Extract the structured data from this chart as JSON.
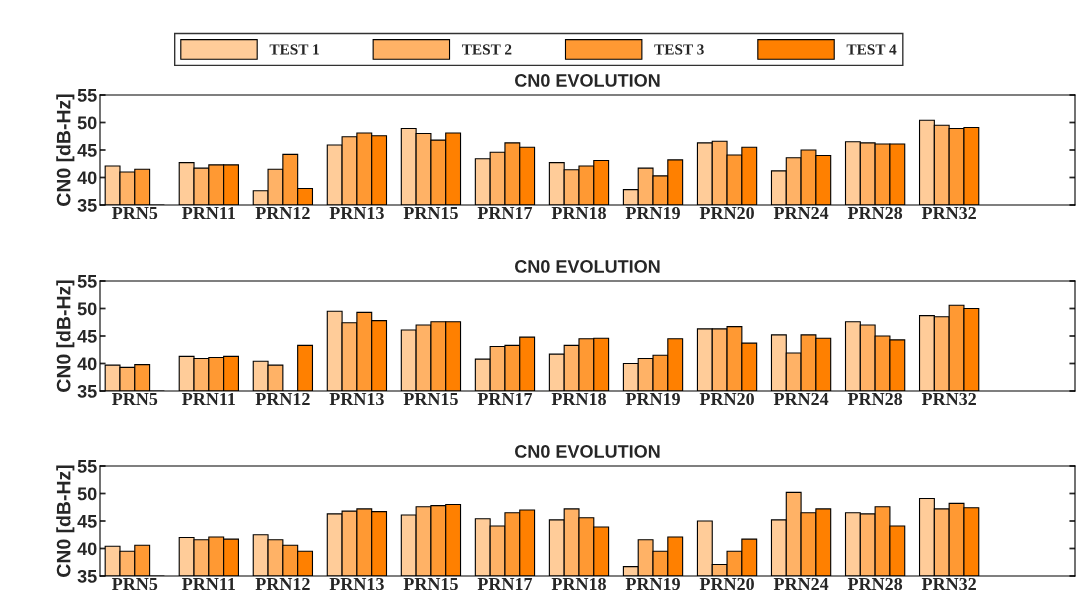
{
  "chart_data": [
    {
      "type": "bar",
      "title": "CN0 EVOLUTION",
      "ylabel": "CN0 [dB-Hz]",
      "legend": "top",
      "grid": false,
      "categories": [
        "PRN5",
        "PRN11",
        "PRN12",
        "PRN13",
        "PRN15",
        "PRN17",
        "PRN18",
        "PRN19",
        "PRN20",
        "PRN24",
        "PRN28",
        "PRN32"
      ],
      "ylim": [
        35,
        55
      ],
      "yticks": [
        35,
        40,
        45,
        50,
        55
      ],
      "series": [
        {
          "name": "TEST 1",
          "color": "#ffcc99",
          "values": [
            42.1,
            42.7,
            37.6,
            45.9,
            48.9,
            43.4,
            42.7,
            37.8,
            46.3,
            41.2,
            46.5,
            50.4
          ]
        },
        {
          "name": "TEST 2",
          "color": "#ffb266",
          "values": [
            41.0,
            41.7,
            41.5,
            47.4,
            48.0,
            44.6,
            41.4,
            41.7,
            46.6,
            43.6,
            46.3,
            49.5
          ]
        },
        {
          "name": "TEST 3",
          "color": "#ff9933",
          "values": [
            41.5,
            42.3,
            44.2,
            48.1,
            46.8,
            46.3,
            42.1,
            40.3,
            44.1,
            45.0,
            46.1,
            48.9
          ]
        },
        {
          "name": "TEST 4",
          "color": "#ff8000",
          "values": [
            35,
            42.3,
            38.0,
            47.6,
            48.1,
            45.5,
            43.1,
            43.2,
            45.5,
            44.0,
            46.1,
            49.1
          ]
        }
      ]
    },
    {
      "type": "bar",
      "title": "CN0 EVOLUTION",
      "ylabel": "CN0 [dB-Hz]",
      "grid": false,
      "categories": [
        "PRN5",
        "PRN11",
        "PRN12",
        "PRN13",
        "PRN15",
        "PRN17",
        "PRN18",
        "PRN19",
        "PRN20",
        "PRN24",
        "PRN28",
        "PRN32"
      ],
      "ylim": [
        35,
        55
      ],
      "yticks": [
        35,
        40,
        45,
        50,
        55
      ],
      "series": [
        {
          "color": "#ffcc99",
          "values": [
            39.7,
            41.3,
            40.4,
            49.5,
            46.1,
            40.8,
            41.7,
            40.0,
            46.3,
            45.2,
            47.6,
            48.7
          ]
        },
        {
          "color": "#ffb266",
          "values": [
            39.3,
            40.9,
            39.7,
            47.4,
            47.0,
            43.1,
            43.3,
            40.9,
            46.3,
            41.9,
            47.0,
            48.5
          ]
        },
        {
          "color": "#ff9933",
          "values": [
            39.8,
            41.1,
            35,
            49.3,
            47.6,
            43.3,
            44.5,
            41.5,
            46.7,
            45.2,
            45.0,
            50.6
          ]
        },
        {
          "color": "#ff8000",
          "values": [
            35,
            41.3,
            43.3,
            47.8,
            47.6,
            44.8,
            44.6,
            44.5,
            43.7,
            44.6,
            44.3,
            50.0
          ]
        }
      ]
    },
    {
      "type": "bar",
      "title": "CN0 EVOLUTION",
      "ylabel": "CN0 [dB-Hz]",
      "grid": false,
      "categories": [
        "PRN5",
        "PRN11",
        "PRN12",
        "PRN13",
        "PRN15",
        "PRN17",
        "PRN18",
        "PRN19",
        "PRN20",
        "PRN24",
        "PRN28",
        "PRN32"
      ],
      "ylim": [
        35,
        55
      ],
      "yticks": [
        35,
        40,
        45,
        50,
        55
      ],
      "series": [
        {
          "color": "#ffcc99",
          "values": [
            40.4,
            42.0,
            42.5,
            46.3,
            46.1,
            45.4,
            45.2,
            36.7,
            45.0,
            45.2,
            46.5,
            49.1
          ]
        },
        {
          "color": "#ffb266",
          "values": [
            39.5,
            41.6,
            41.6,
            46.8,
            47.6,
            44.1,
            47.2,
            41.6,
            37.1,
            50.2,
            46.3,
            47.2
          ]
        },
        {
          "color": "#ff9933",
          "values": [
            40.6,
            42.1,
            40.6,
            47.2,
            47.8,
            46.5,
            45.6,
            39.5,
            39.5,
            46.5,
            47.6,
            48.2
          ]
        },
        {
          "color": "#ff8000",
          "values": [
            35,
            41.7,
            39.5,
            46.7,
            48.0,
            47.0,
            43.9,
            42.1,
            41.7,
            47.2,
            44.1,
            47.4
          ]
        }
      ]
    }
  ]
}
